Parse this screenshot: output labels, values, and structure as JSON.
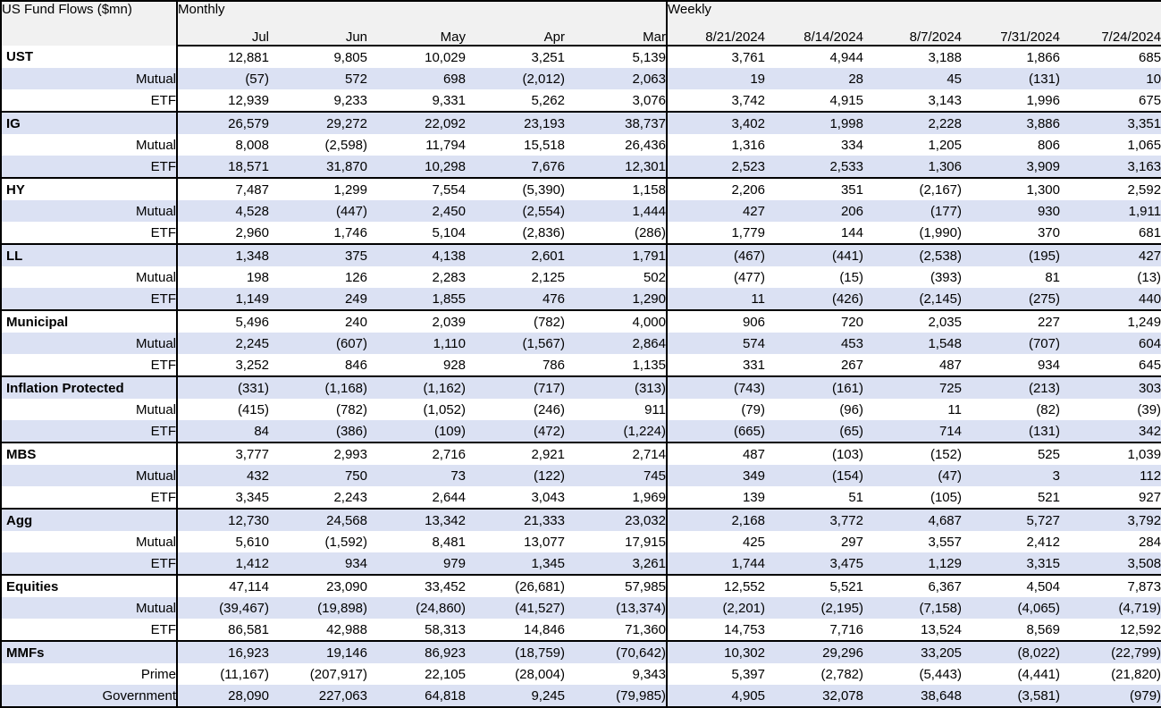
{
  "colors": {
    "band_fill": "#dbe1f3",
    "header_fill": "#f1f1f1",
    "border": "#000000",
    "text": "#000000"
  },
  "table": {
    "corner_label": "US Fund Flows ($mn)",
    "sections": [
      {
        "label": "Monthly",
        "columns": [
          "Jul",
          "Jun",
          "May",
          "Apr",
          "Mar"
        ]
      },
      {
        "label": "Weekly",
        "columns": [
          "8/21/2024",
          "8/14/2024",
          "8/7/2024",
          "7/31/2024",
          "7/24/2024"
        ]
      }
    ],
    "groups": [
      {
        "name": "UST",
        "rows": [
          {
            "label": "UST",
            "monthly": [
              "12,881",
              "9,805",
              "10,029",
              "3,251",
              "5,139"
            ],
            "weekly": [
              "3,761",
              "4,944",
              "3,188",
              "1,866",
              "685"
            ]
          },
          {
            "label": "Mutual",
            "monthly": [
              "(57)",
              "572",
              "698",
              "(2,012)",
              "2,063"
            ],
            "weekly": [
              "19",
              "28",
              "45",
              "(131)",
              "10"
            ]
          },
          {
            "label": "ETF",
            "monthly": [
              "12,939",
              "9,233",
              "9,331",
              "5,262",
              "3,076"
            ],
            "weekly": [
              "3,742",
              "4,915",
              "3,143",
              "1,996",
              "675"
            ]
          }
        ]
      },
      {
        "name": "IG",
        "rows": [
          {
            "label": "IG",
            "monthly": [
              "26,579",
              "29,272",
              "22,092",
              "23,193",
              "38,737"
            ],
            "weekly": [
              "3,402",
              "1,998",
              "2,228",
              "3,886",
              "3,351"
            ]
          },
          {
            "label": "Mutual",
            "monthly": [
              "8,008",
              "(2,598)",
              "11,794",
              "15,518",
              "26,436"
            ],
            "weekly": [
              "1,316",
              "334",
              "1,205",
              "806",
              "1,065"
            ]
          },
          {
            "label": "ETF",
            "monthly": [
              "18,571",
              "31,870",
              "10,298",
              "7,676",
              "12,301"
            ],
            "weekly": [
              "2,523",
              "2,533",
              "1,306",
              "3,909",
              "3,163"
            ]
          }
        ]
      },
      {
        "name": "HY",
        "rows": [
          {
            "label": "HY",
            "monthly": [
              "7,487",
              "1,299",
              "7,554",
              "(5,390)",
              "1,158"
            ],
            "weekly": [
              "2,206",
              "351",
              "(2,167)",
              "1,300",
              "2,592"
            ]
          },
          {
            "label": "Mutual",
            "monthly": [
              "4,528",
              "(447)",
              "2,450",
              "(2,554)",
              "1,444"
            ],
            "weekly": [
              "427",
              "206",
              "(177)",
              "930",
              "1,911"
            ]
          },
          {
            "label": "ETF",
            "monthly": [
              "2,960",
              "1,746",
              "5,104",
              "(2,836)",
              "(286)"
            ],
            "weekly": [
              "1,779",
              "144",
              "(1,990)",
              "370",
              "681"
            ]
          }
        ]
      },
      {
        "name": "LL",
        "rows": [
          {
            "label": "LL",
            "monthly": [
              "1,348",
              "375",
              "4,138",
              "2,601",
              "1,791"
            ],
            "weekly": [
              "(467)",
              "(441)",
              "(2,538)",
              "(195)",
              "427"
            ]
          },
          {
            "label": "Mutual",
            "monthly": [
              "198",
              "126",
              "2,283",
              "2,125",
              "502"
            ],
            "weekly": [
              "(477)",
              "(15)",
              "(393)",
              "81",
              "(13)"
            ]
          },
          {
            "label": "ETF",
            "monthly": [
              "1,149",
              "249",
              "1,855",
              "476",
              "1,290"
            ],
            "weekly": [
              "11",
              "(426)",
              "(2,145)",
              "(275)",
              "440"
            ]
          }
        ]
      },
      {
        "name": "Municipal",
        "rows": [
          {
            "label": "Municipal",
            "monthly": [
              "5,496",
              "240",
              "2,039",
              "(782)",
              "4,000"
            ],
            "weekly": [
              "906",
              "720",
              "2,035",
              "227",
              "1,249"
            ]
          },
          {
            "label": "Mutual",
            "monthly": [
              "2,245",
              "(607)",
              "1,110",
              "(1,567)",
              "2,864"
            ],
            "weekly": [
              "574",
              "453",
              "1,548",
              "(707)",
              "604"
            ]
          },
          {
            "label": "ETF",
            "monthly": [
              "3,252",
              "846",
              "928",
              "786",
              "1,135"
            ],
            "weekly": [
              "331",
              "267",
              "487",
              "934",
              "645"
            ]
          }
        ]
      },
      {
        "name": "Inflation Protected",
        "rows": [
          {
            "label": "Inflation Protected",
            "monthly": [
              "(331)",
              "(1,168)",
              "(1,162)",
              "(717)",
              "(313)"
            ],
            "weekly": [
              "(743)",
              "(161)",
              "725",
              "(213)",
              "303"
            ]
          },
          {
            "label": "Mutual",
            "monthly": [
              "(415)",
              "(782)",
              "(1,052)",
              "(246)",
              "911"
            ],
            "weekly": [
              "(79)",
              "(96)",
              "11",
              "(82)",
              "(39)"
            ]
          },
          {
            "label": "ETF",
            "monthly": [
              "84",
              "(386)",
              "(109)",
              "(472)",
              "(1,224)"
            ],
            "weekly": [
              "(665)",
              "(65)",
              "714",
              "(131)",
              "342"
            ]
          }
        ]
      },
      {
        "name": "MBS",
        "rows": [
          {
            "label": "MBS",
            "monthly": [
              "3,777",
              "2,993",
              "2,716",
              "2,921",
              "2,714"
            ],
            "weekly": [
              "487",
              "(103)",
              "(152)",
              "525",
              "1,039"
            ]
          },
          {
            "label": "Mutual",
            "monthly": [
              "432",
              "750",
              "73",
              "(122)",
              "745"
            ],
            "weekly": [
              "349",
              "(154)",
              "(47)",
              "3",
              "112"
            ]
          },
          {
            "label": "ETF",
            "monthly": [
              "3,345",
              "2,243",
              "2,644",
              "3,043",
              "1,969"
            ],
            "weekly": [
              "139",
              "51",
              "(105)",
              "521",
              "927"
            ]
          }
        ]
      },
      {
        "name": "Agg",
        "rows": [
          {
            "label": "Agg",
            "monthly": [
              "12,730",
              "24,568",
              "13,342",
              "21,333",
              "23,032"
            ],
            "weekly": [
              "2,168",
              "3,772",
              "4,687",
              "5,727",
              "3,792"
            ]
          },
          {
            "label": "Mutual",
            "monthly": [
              "5,610",
              "(1,592)",
              "8,481",
              "13,077",
              "17,915"
            ],
            "weekly": [
              "425",
              "297",
              "3,557",
              "2,412",
              "284"
            ]
          },
          {
            "label": "ETF",
            "monthly": [
              "1,412",
              "934",
              "979",
              "1,345",
              "3,261"
            ],
            "weekly": [
              "1,744",
              "3,475",
              "1,129",
              "3,315",
              "3,508"
            ]
          }
        ]
      },
      {
        "name": "Equities",
        "rows": [
          {
            "label": "Equities",
            "monthly": [
              "47,114",
              "23,090",
              "33,452",
              "(26,681)",
              "57,985"
            ],
            "weekly": [
              "12,552",
              "5,521",
              "6,367",
              "4,504",
              "7,873"
            ]
          },
          {
            "label": "Mutual",
            "monthly": [
              "(39,467)",
              "(19,898)",
              "(24,860)",
              "(41,527)",
              "(13,374)"
            ],
            "weekly": [
              "(2,201)",
              "(2,195)",
              "(7,158)",
              "(4,065)",
              "(4,719)"
            ]
          },
          {
            "label": "ETF",
            "monthly": [
              "86,581",
              "42,988",
              "58,313",
              "14,846",
              "71,360"
            ],
            "weekly": [
              "14,753",
              "7,716",
              "13,524",
              "8,569",
              "12,592"
            ]
          }
        ]
      },
      {
        "name": "MMFs",
        "rows": [
          {
            "label": "MMFs",
            "monthly": [
              "16,923",
              "19,146",
              "86,923",
              "(18,759)",
              "(70,642)"
            ],
            "weekly": [
              "10,302",
              "29,296",
              "33,205",
              "(8,022)",
              "(22,799)"
            ]
          },
          {
            "label": "Prime",
            "monthly": [
              "(11,167)",
              "(207,917)",
              "22,105",
              "(28,004)",
              "9,343"
            ],
            "weekly": [
              "5,397",
              "(2,782)",
              "(5,443)",
              "(4,441)",
              "(21,820)"
            ]
          },
          {
            "label": "Government",
            "monthly": [
              "28,090",
              "227,063",
              "64,818",
              "9,245",
              "(79,985)"
            ],
            "weekly": [
              "4,905",
              "32,078",
              "38,648",
              "(3,581)",
              "(979)"
            ]
          }
        ]
      }
    ]
  }
}
